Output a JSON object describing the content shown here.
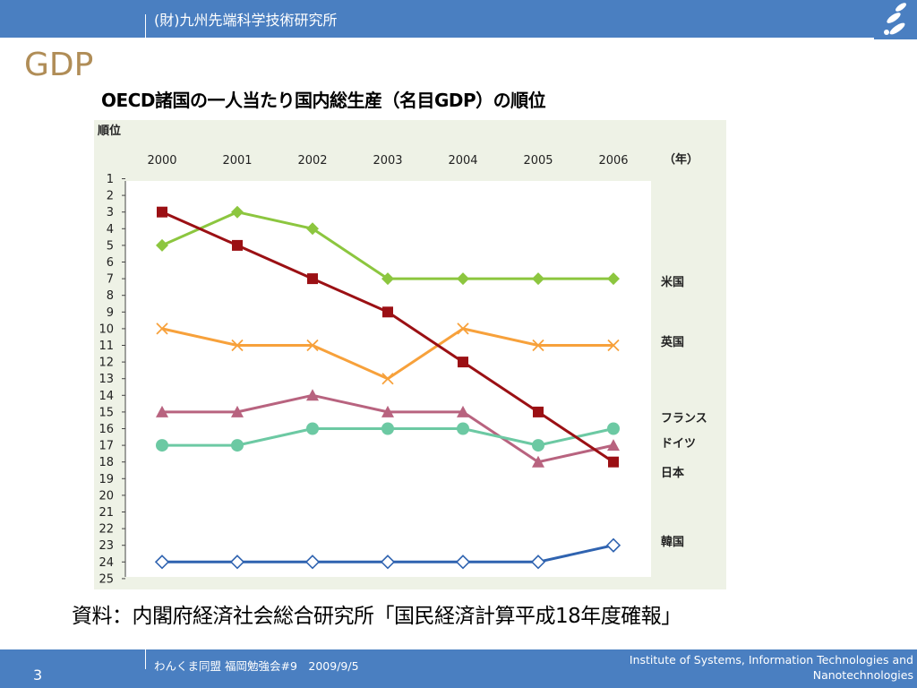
{
  "header": {
    "organization": "(財)九州先端科学技術研究所"
  },
  "slide": {
    "title": "GDP"
  },
  "chart_heading": "OECD諸国の一人当たり国内総生産（名目GDP）の順位",
  "source_note": "資料：内閣府経済社会総合研究所「国民経済計算平成18年度確報」",
  "footer": {
    "page_number": "3",
    "event": "わんくま同盟 福岡勉強会#9　2009/9/5",
    "institute_line1": "Institute of Systems, Information Technologies and",
    "institute_line2": "Nanotechnologies"
  },
  "colors": {
    "bar": "#4a7fc1",
    "title": "#b08d57",
    "chart_bg": "#eef2e6",
    "plot_bg": "#ffffff"
  },
  "chart_data": {
    "type": "line",
    "ylabel": "順位",
    "x_unit": "（年）",
    "x": [
      "2000",
      "2001",
      "2002",
      "2003",
      "2004",
      "2005",
      "2006"
    ],
    "ylim": [
      1,
      25
    ],
    "y_inverted": true,
    "y_ticks": [
      1,
      2,
      3,
      4,
      5,
      6,
      7,
      8,
      9,
      10,
      11,
      12,
      13,
      14,
      15,
      16,
      17,
      18,
      19,
      20,
      21,
      22,
      23,
      24,
      25
    ],
    "grid": false,
    "legend": "direct labels at right end of lines",
    "series": [
      {
        "name": "米国",
        "values": [
          5,
          3,
          4,
          7,
          7,
          7,
          7
        ],
        "color": "#8cc63f",
        "marker": "diamond"
      },
      {
        "name": "英国",
        "values": [
          10,
          11,
          11,
          13,
          10,
          11,
          11
        ],
        "color": "#f7a13b",
        "marker": "x"
      },
      {
        "name": "フランス",
        "values": [
          15,
          15,
          14,
          15,
          15,
          18,
          17
        ],
        "color": "#b8637f",
        "marker": "triangle"
      },
      {
        "name": "ドイツ",
        "values": [
          17,
          17,
          16,
          16,
          16,
          17,
          16
        ],
        "color": "#6cc9a3",
        "marker": "circle"
      },
      {
        "name": "日本",
        "values": [
          3,
          5,
          7,
          9,
          12,
          15,
          18
        ],
        "color": "#9b1014",
        "marker": "square"
      },
      {
        "name": "韓国",
        "values": [
          24,
          24,
          24,
          24,
          24,
          24,
          23
        ],
        "color": "#2f63b0",
        "marker": "open-diamond"
      }
    ]
  }
}
